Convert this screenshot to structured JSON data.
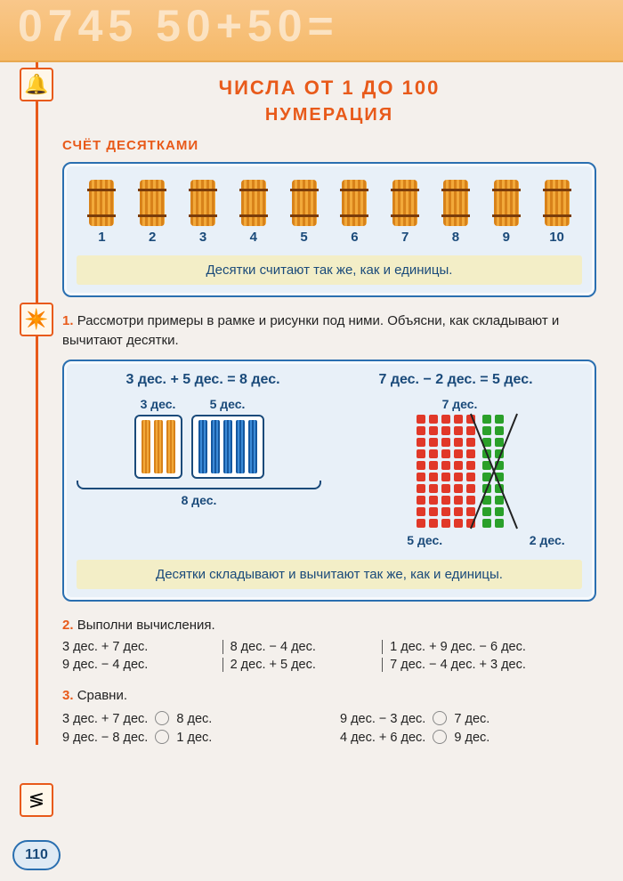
{
  "banner_digits": "0745 50+50=",
  "title1": "ЧИСЛА ОТ 1 ДО 100",
  "title2": "НУМЕРАЦИЯ",
  "section_label": "СЧЁТ ДЕСЯТКАМИ",
  "bundles": {
    "numbers": [
      "1",
      "2",
      "3",
      "4",
      "5",
      "6",
      "7",
      "8",
      "9",
      "10"
    ]
  },
  "caption1": "Десятки считают так же, как и единицы.",
  "task1": {
    "num": "1.",
    "text": "Рассмотри примеры в рамке и рисунки под ними. Объясни, как складывают и вычитают десятки."
  },
  "eq1": "3 дес. + 5 дес. = 8 дес.",
  "eq2": "7 дес. − 2 дес. = 5 дес.",
  "grp_3": "3 дес.",
  "grp_5": "5 дес.",
  "grp_7": "7 дес.",
  "grp_8": "8 дес.",
  "grp_res5": "5 дес.",
  "grp_2": "2 дес.",
  "caption2": "Десятки складывают и вычитают так же, как и единицы.",
  "task2": {
    "num": "2.",
    "label": "Выполни вычисления."
  },
  "calc": [
    "3 дес. + 7 дес.",
    "8 дес. − 4 дес.",
    "1 дес. + 9 дес. − 6 дес.",
    "9 дес. − 4 дес.",
    "2 дес. + 5 дес.",
    "7 дес. − 4 дес. + 3 дес."
  ],
  "task3": {
    "num": "3.",
    "label": "Сравни."
  },
  "compare": [
    {
      "left": "3 дес. + 7 дес.",
      "right": "8 дес."
    },
    {
      "left": "9 дес. − 3 дес.",
      "right": "7 дес."
    },
    {
      "left": "9 дес. − 8 дес.",
      "right": "1 дес."
    },
    {
      "left": "4 дес. + 6 дес.",
      "right": "9 дес."
    }
  ],
  "page_num": "110",
  "colors": {
    "accent": "#e85a1a",
    "frame_border": "#2a6fb0",
    "frame_bg": "#e8f0f8",
    "caption_bg": "#f3eec7",
    "text_blue": "#1a4a7a",
    "red": "#e13828",
    "green": "#2aa02a"
  }
}
